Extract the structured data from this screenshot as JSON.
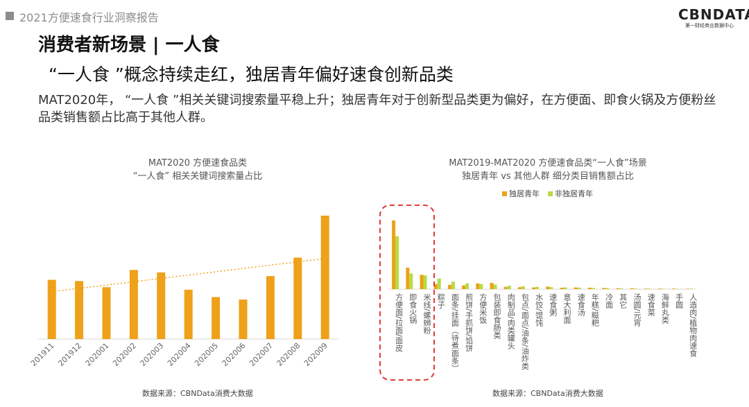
{
  "header": {
    "report_title": "2021方便速食行业洞察报告"
  },
  "logo": {
    "main": "CBNDATA",
    "sub": "第一财经商业数据中心"
  },
  "page": {
    "title": "消费者新场景 | 一人食",
    "subtitle": "“一人食 ”概念持续走红，独居青年偏好速食创新品类",
    "description": "MAT2020年， “一人食 ”相关关键词搜索量平稳上升；独居青年对于创新型品类更为偏好，在方便面、即食火锅及方便粉丝品类销售额占比高于其他人群。"
  },
  "colors": {
    "orange": "#eea119",
    "green": "#b7dc43",
    "trend": "#eea119",
    "highlight": "#e03c31"
  },
  "chart_data": [
    {
      "type": "bar",
      "title": "MAT2020 方便速食品类",
      "subtitle": "“一人食” 相关关键词搜索量占比",
      "categories": [
        "201911",
        "201912",
        "202001",
        "202002",
        "202003",
        "202004",
        "202005",
        "202006",
        "202007",
        "202008",
        "202009"
      ],
      "values": [
        48,
        47,
        42,
        56,
        54,
        40,
        34,
        32,
        51,
        66,
        100
      ],
      "trendline": "linear, dotted",
      "grid": false,
      "source": "数据来源：CBNData消费大数据"
    },
    {
      "type": "bar",
      "title": "MAT2019-MAT2020 方便速食品类“一人食”场景",
      "subtitle": "独居青年 vs 其他人群 细分类目销售额占比",
      "legend_position": "top",
      "categories": [
        "方便面/拉面/面皮",
        "即食火锅",
        "米线/螺蛳粉",
        "粽子",
        "面条/挂面（待煮面条）",
        "煎饼/手抓饼/馅饼",
        "方便米饭",
        "包装即食肠类",
        "肉制品/肉类罐头",
        "包点/面点/油条/油炸类",
        "水饺/馄饨",
        "速食粥",
        "意大利面",
        "速食汤",
        "年糕/糍粑",
        "冷面",
        "其它",
        "汤圆/元宵",
        "速食菜",
        "海鲜丸类",
        "手圆",
        "人造肉/植物肉速食"
      ],
      "series": [
        {
          "name": "独居青年",
          "values": [
            24,
            7.5,
            5,
            1.8,
            1.5,
            1.3,
            2.0,
            2.2,
            0.8,
            0.7,
            0.6,
            0.9,
            0.5,
            0.6,
            0.5,
            0.4,
            0.3,
            0.3,
            0.2,
            0.2,
            0.2,
            0.1
          ]
        },
        {
          "name": "非独居青年",
          "values": [
            18.5,
            5.5,
            4.8,
            3.7,
            2.6,
            2.0,
            1.8,
            1.6,
            1.2,
            1.0,
            0.8,
            0.7,
            0.6,
            0.5,
            0.4,
            0.4,
            0.3,
            0.2,
            0.2,
            0.1,
            0.1,
            0.1
          ]
        }
      ],
      "highlighted_categories": [
        "方便面/拉面/面皮",
        "即食火锅",
        "米线/螺蛳粉"
      ],
      "source": "数据来源：CBNData消费大数据"
    }
  ]
}
